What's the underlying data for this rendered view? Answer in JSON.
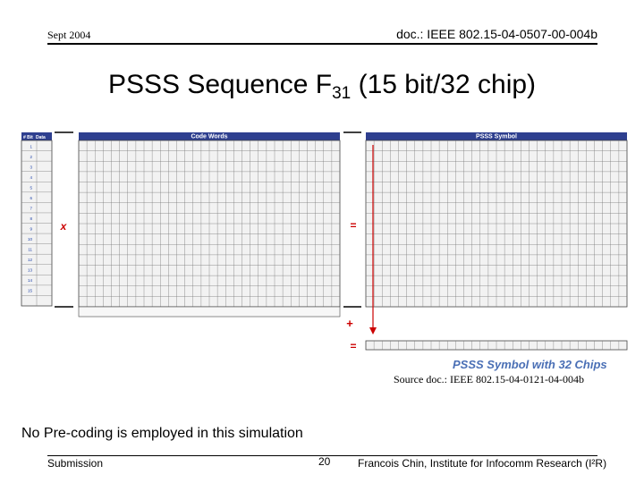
{
  "header": {
    "date": "Sept 2004",
    "doc_id": "doc.: IEEE 802.15-04-0507-00-004b"
  },
  "slide": {
    "title_main": "PSSS Sequence F",
    "title_sub": "31",
    "title_rest": " (15 bit/32 chip)"
  },
  "figure": {
    "codewords_header": "Code Words",
    "symbol_header": "PSSS Symbol",
    "bit_header": "# Bit",
    "data_header": "Data",
    "multiply_op": "x",
    "equals_op": "=",
    "plus_op": "+",
    "caption": "PSSS Symbol with 32 Chips",
    "source": "Source doc.: IEEE 802.15-04-0121-04-004b",
    "header_color": "#2e3f8f",
    "row_number_color": "#1a3fa8",
    "operator_color": "#cc0000"
  },
  "note": "No Pre-coding is employed in this simulation",
  "footer": {
    "left": "Submission",
    "page": "20",
    "author": "Francois Chin, Institute for Infocomm Research (I²R)"
  }
}
